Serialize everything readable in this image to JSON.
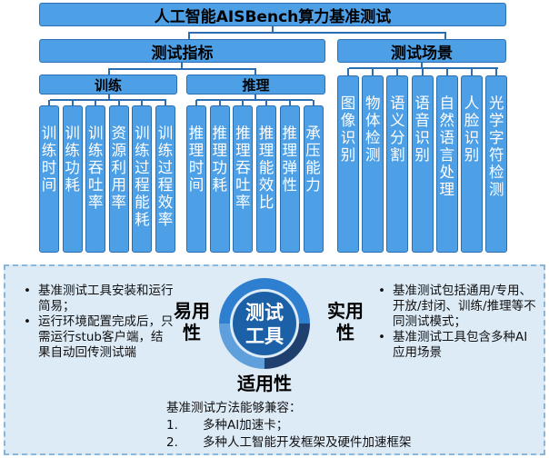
{
  "title": "人工智能AISBench算力基准测试",
  "indicators": {
    "label": "测试指标",
    "training": {
      "label": "训练",
      "items": [
        "训练时间",
        "训练功耗",
        "训练吞吐率",
        "资源利用率",
        "训练过程能耗",
        "训练过程效率"
      ]
    },
    "inference": {
      "label": "推理",
      "items": [
        "推理时间",
        "推理功耗",
        "推理吞吐率",
        "推理能效比",
        "推理弹性",
        "承压能力"
      ]
    }
  },
  "scenarios": {
    "label": "测试场景",
    "items": [
      "图像识别",
      "物体检测",
      "语义分割",
      "语音识别",
      "自然语言处理",
      "人脸识别",
      "光学字符检测"
    ]
  },
  "tool": {
    "center_label_1": "测试",
    "center_label_2": "工具",
    "left_label": "易用性",
    "right_label": "实用性",
    "bottom_label": "适用性",
    "colors": {
      "ring_blue": "#2f7fd0",
      "ring_dark": "#1f3f6e",
      "ring_light": "#5fa0dc",
      "center": "#1c60a8"
    }
  },
  "ease_points": [
    "基准测试工具安装和运行简易；",
    "运行环境配置完成后，只需运行stub客户端，结果自动回传测试端"
  ],
  "practical_points": [
    "基准测试包括通用/专用、开放/封闭、训练/推理等不同测试模式；",
    "基准测试工具包含多种AI应用场景"
  ],
  "compat": {
    "intro": "基准测试方法能够兼容：",
    "items": [
      {
        "num": "1.",
        "text": "多种AI加速卡；"
      },
      {
        "num": "2.",
        "text": "多种人工智能开发框架及硬件加速框架"
      }
    ]
  }
}
